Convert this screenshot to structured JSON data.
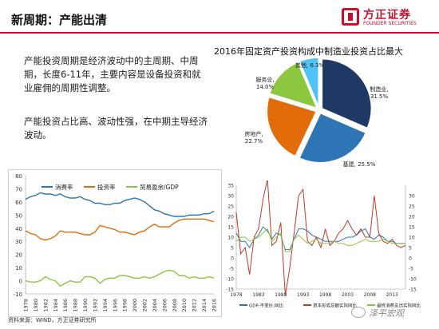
{
  "header": {
    "title": "新周期：产能出清",
    "logo_cn": "方正证券",
    "logo_en": "FOUNDER SECURITIES",
    "accent": "#c8102e"
  },
  "text": {
    "para1": "产能投资周期是经济波动中的主周期、中周期，长度6-11年，主要内容是设备投资和就业雇佣的周期性调整。",
    "para2": "产能投资占比高、波动性强，在中期主导经济波动。"
  },
  "footnote": "资料来源：WIND，方正证券研究所",
  "watermark": "泽平宏观",
  "chart_data": [
    {
      "type": "pie",
      "title": "2016年固定资产投资构成中制造业投资占比最大",
      "slices": [
        {
          "label": "制造业",
          "value": 31.5,
          "display": "制造业,\n31.5%",
          "color": "#1f3864"
        },
        {
          "label": "基建",
          "value": 25.5,
          "display": "基建, 25.5%",
          "color": "#2e75b6"
        },
        {
          "label": "房地产",
          "value": 22.7,
          "display": "房地产,\n22.7%",
          "color": "#e36c0a"
        },
        {
          "label": "服务业",
          "value": 14.0,
          "display": "服务业,\n14.0%",
          "color": "#8dc63f"
        },
        {
          "label": "其他",
          "value": 6.3,
          "display": "其他, 6.3%",
          "color": "#4fc3f7"
        }
      ]
    },
    {
      "type": "line",
      "x": [
        1978,
        1979,
        1980,
        1981,
        1982,
        1983,
        1984,
        1985,
        1986,
        1987,
        1988,
        1989,
        1990,
        1991,
        1992,
        1993,
        1994,
        1995,
        1996,
        1997,
        1998,
        1999,
        2000,
        2001,
        2002,
        2003,
        2004,
        2005,
        2006,
        2007,
        2008,
        2009,
        2010,
        2011,
        2012,
        2013,
        2014,
        2015,
        2016
      ],
      "xticks": [
        "1978",
        "1980",
        "1982",
        "1984",
        "1986",
        "1988",
        "1990",
        "1992",
        "1994",
        "1996",
        "1998",
        "2000",
        "2002",
        "2004",
        "2006",
        "2008",
        "2010",
        "2012",
        "2014",
        "2016"
      ],
      "ylim": [
        -10,
        80
      ],
      "yticks": [
        "-10",
        "0",
        "10",
        "20",
        "30",
        "40",
        "50",
        "60",
        "70",
        "80"
      ],
      "series": [
        {
          "name": "消费率",
          "color": "#2e75b6",
          "values": [
            62,
            64,
            65,
            67,
            66,
            66,
            65,
            66,
            64,
            63,
            63,
            64,
            62,
            61,
            59,
            59,
            58,
            58,
            59,
            59,
            61,
            62,
            63,
            62,
            60,
            57,
            54,
            53,
            51,
            50,
            49,
            49,
            49,
            50,
            50,
            50,
            51,
            51,
            53
          ]
        },
        {
          "name": "投资率",
          "color": "#e36c0a",
          "values": [
            38,
            36,
            35,
            32,
            31,
            32,
            34,
            38,
            37,
            37,
            37,
            36,
            35,
            35,
            37,
            42,
            41,
            40,
            39,
            37,
            37,
            36,
            35,
            37,
            38,
            41,
            43,
            41,
            41,
            41,
            44,
            46,
            47,
            47,
            47,
            47,
            47,
            46,
            45
          ]
        },
        {
          "name": "贸易盈余/GDP",
          "color": "#8dc63f",
          "values": [
            0,
            -1,
            -1,
            0,
            3,
            1,
            0,
            -4,
            -2,
            0,
            -1,
            -1,
            3,
            3,
            2,
            -2,
            1,
            2,
            2,
            4,
            4,
            3,
            2,
            2,
            3,
            2,
            3,
            5,
            7,
            8,
            7,
            4,
            4,
            2,
            3,
            2,
            2,
            3,
            2
          ]
        }
      ]
    },
    {
      "type": "line",
      "x": [
        1978,
        1979,
        1980,
        1981,
        1982,
        1983,
        1984,
        1985,
        1986,
        1987,
        1988,
        1989,
        1990,
        1991,
        1992,
        1993,
        1994,
        1995,
        1996,
        1997,
        1998,
        1999,
        2000,
        2001,
        2002,
        2003,
        2004,
        2005,
        2006,
        2007,
        2008,
        2009,
        2010,
        2011,
        2012,
        2013,
        2014,
        2015,
        2016
      ],
      "xticks": [
        "1978",
        "1983",
        "1988",
        "1993",
        "1998",
        "2003",
        "2008",
        "2013"
      ],
      "ylim": [
        -15,
        35
      ],
      "yticks": [
        "-15",
        "-10",
        "-5",
        "0",
        "5",
        "10",
        "15",
        "20",
        "25",
        "30",
        "35"
      ],
      "y2ticks": [
        "-15",
        "-10",
        "-5",
        "0",
        "5",
        "10",
        "15",
        "20",
        "25",
        "30"
      ],
      "series": [
        {
          "name": "GDP:不变价:同比",
          "color": "#2e75b6",
          "values": [
            12,
            8,
            8,
            5,
            9,
            11,
            15,
            13,
            9,
            12,
            11,
            4,
            4,
            9,
            14,
            14,
            13,
            11,
            10,
            9,
            8,
            8,
            8,
            8,
            9,
            10,
            10,
            11,
            13,
            14,
            10,
            9,
            11,
            10,
            8,
            8,
            7,
            7,
            7
          ]
        },
        {
          "name": "资本形成总额实际同比",
          "color": "#c0392b",
          "values": [
            22,
            2,
            5,
            -8,
            10,
            14,
            28,
            38,
            6,
            8,
            17,
            -18,
            -5,
            12,
            30,
            33,
            8,
            6,
            10,
            5,
            14,
            6,
            8,
            12,
            14,
            18,
            14,
            11,
            14,
            10,
            10,
            30,
            12,
            8,
            7,
            9,
            6,
            5,
            6
          ]
        },
        {
          "name": "最终消费支出实际同比",
          "color": "#8dc63f",
          "values": [
            8,
            10,
            10,
            8,
            9,
            10,
            12,
            14,
            8,
            10,
            12,
            3,
            3,
            9,
            11,
            9,
            7,
            8,
            9,
            7,
            7,
            7,
            8,
            7,
            7,
            6,
            6,
            7,
            8,
            9,
            8,
            8,
            8,
            9,
            8,
            7,
            7,
            7,
            7
          ]
        }
      ]
    }
  ]
}
